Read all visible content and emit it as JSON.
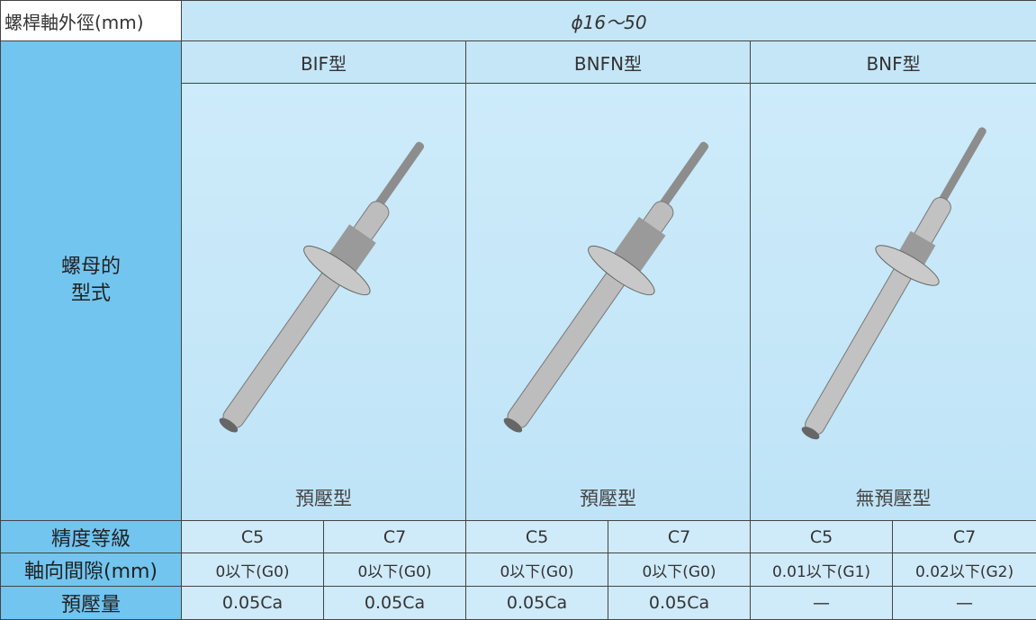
{
  "table": {
    "header": [
      "螺桿軸外徑(mm)",
      "ϕ16～50"
    ],
    "nut_label": [
      "螺母的",
      "型式"
    ],
    "models": [
      "BIF型",
      "BNFN型",
      "BNF型"
    ],
    "preload_types": [
      "預壓型",
      "預壓型",
      "無預壓型"
    ],
    "rows": [
      [
        "精度等級",
        "C5",
        "C7",
        "C5",
        "C7",
        "C5",
        "C7"
      ],
      [
        "軸向間隙(mm)",
        "0以下(G0)",
        "0以下(G0)",
        "0以下(G0)",
        "0以下(G0)",
        "0.01以下(G1)",
        "0.02以下(G2)"
      ],
      [
        "預壓量",
        "0.05Ca",
        "0.05Ca",
        "0.05Ca",
        "0.05Ca",
        "—",
        "—"
      ]
    ]
  }
}
